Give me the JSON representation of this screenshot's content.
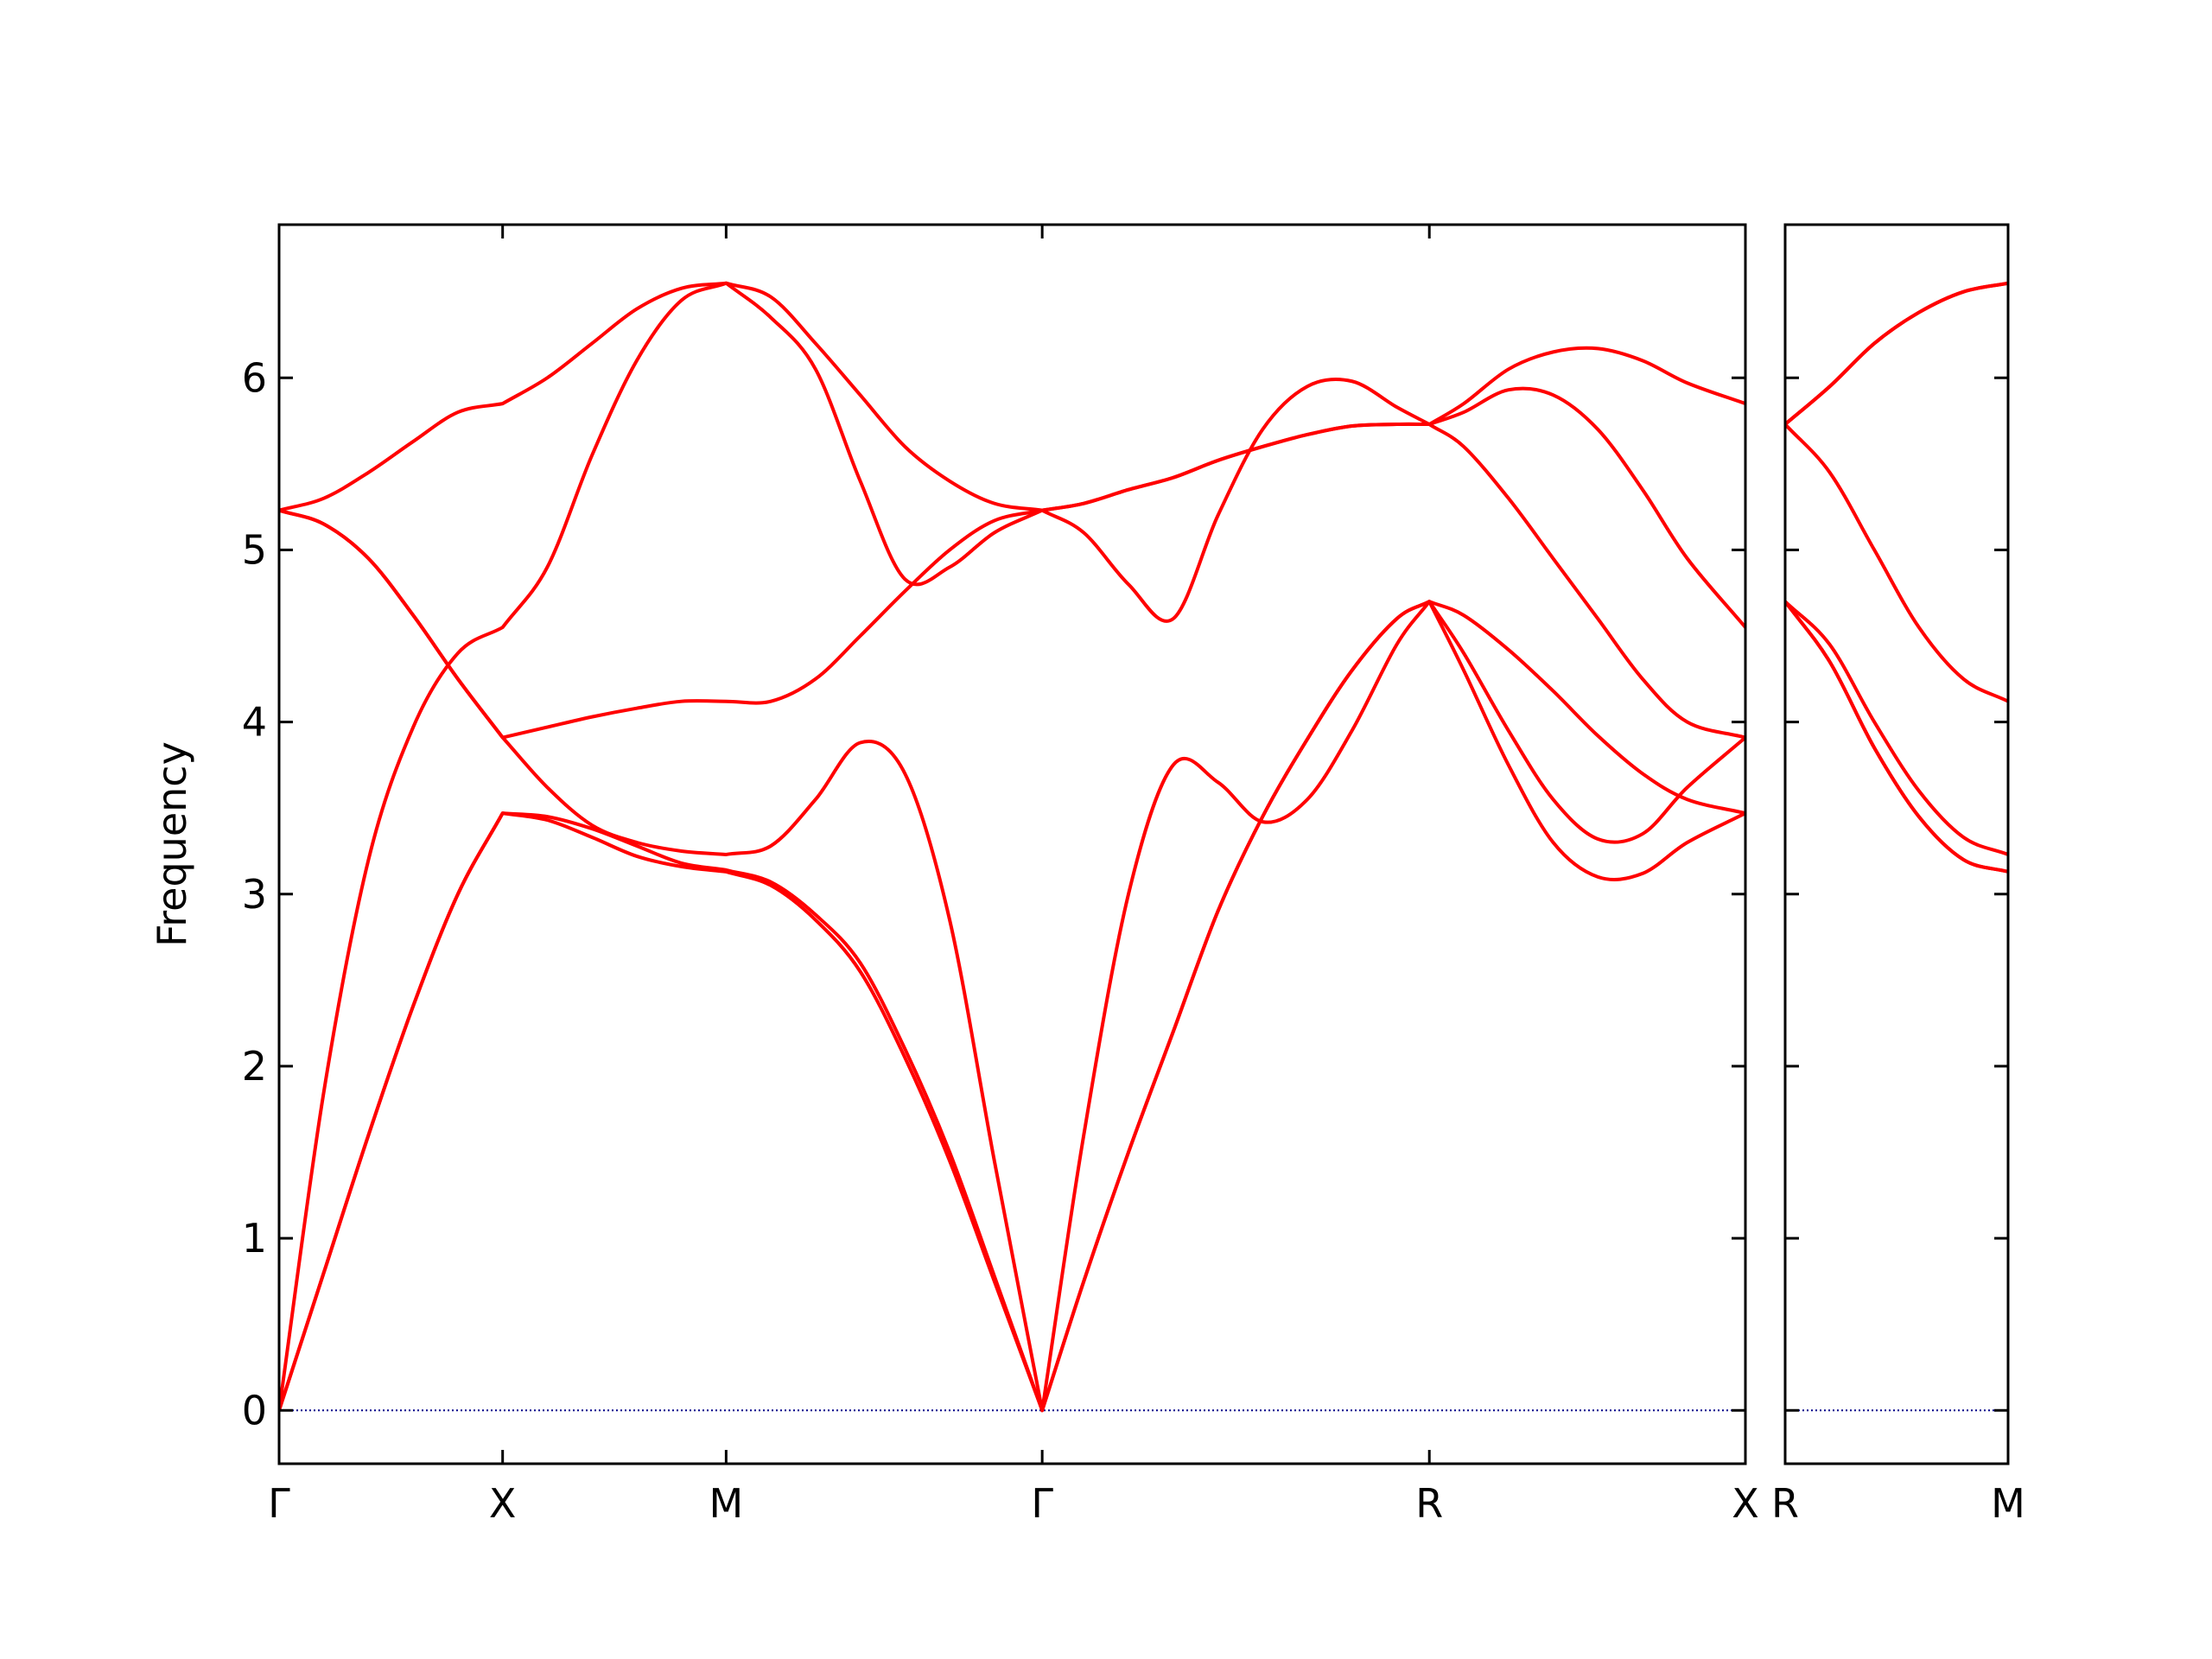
{
  "chart_data": [
    {
      "type": "line",
      "ylabel": "Frequency",
      "x": [
        0,
        0.1,
        0.2,
        0.3,
        0.4,
        0.5,
        0.6,
        0.7,
        0.8,
        0.9,
        1.0,
        1.1,
        1.2,
        1.3,
        1.4,
        1.5,
        1.6,
        1.707,
        1.8,
        1.9,
        2.0,
        2.1,
        2.2,
        2.3,
        2.4,
        2.5,
        2.573,
        2.65,
        2.75,
        2.85,
        2.95,
        3.05,
        3.15,
        3.28
      ],
      "xlim": [
        0,
        3.28
      ],
      "xticks": [
        {
          "value": 0,
          "label": "Γ"
        },
        {
          "value": 0.5,
          "label": "X"
        },
        {
          "value": 1.0,
          "label": "M"
        },
        {
          "value": 1.707,
          "label": "Γ"
        },
        {
          "value": 2.573,
          "label": "R"
        },
        {
          "value": 3.28,
          "label": "X"
        }
      ],
      "ylim": [
        -0.31,
        6.89
      ],
      "yticks": [
        0,
        1,
        2,
        3,
        4,
        5,
        6
      ],
      "ytick_labels": true,
      "hline": 0,
      "hline_color": "#00008b",
      "series": [
        {
          "color": "#ff0000",
          "values": [
            0,
            0.8,
            1.6,
            2.35,
            3.0,
            3.47,
            3.43,
            3.33,
            3.22,
            3.16,
            3.13,
            3.05,
            2.85,
            2.55,
            2.05,
            1.45,
            0.75,
            0,
            0.75,
            1.5,
            2.2,
            2.9,
            3.45,
            3.9,
            4.3,
            4.6,
            4.7,
            4.3,
            3.75,
            3.3,
            3.1,
            3.12,
            3.3,
            3.47
          ]
        },
        {
          "color": "#ff0000",
          "values": [
            0,
            0.8,
            1.6,
            2.35,
            3.0,
            3.47,
            3.45,
            3.38,
            3.28,
            3.18,
            3.14,
            3.07,
            2.88,
            2.6,
            2.1,
            1.5,
            0.78,
            0,
            0.75,
            1.5,
            2.2,
            2.9,
            3.45,
            3.9,
            4.3,
            4.6,
            4.7,
            4.62,
            4.42,
            4.18,
            3.92,
            3.7,
            3.55,
            3.47
          ]
        },
        {
          "color": "#ff0000",
          "values": [
            0,
            1.85,
            3.2,
            3.97,
            4.4,
            4.55,
            4.9,
            5.55,
            6.1,
            6.45,
            6.55,
            6.35,
            6.05,
            5.4,
            4.83,
            4.9,
            5.1,
            5.23,
            5.1,
            4.8,
            4.6,
            5.2,
            5.7,
            5.95,
            5.98,
            5.83,
            5.73,
            5.8,
            5.93,
            5.9,
            5.7,
            5.35,
            4.95,
            4.55
          ]
        },
        {
          "color": "#ff0000",
          "values": [
            5.23,
            5.15,
            4.95,
            4.62,
            4.25,
            3.91,
            3.62,
            3.4,
            3.3,
            3.25,
            3.23,
            3.28,
            3.55,
            3.88,
            3.7,
            2.85,
            1.45,
            0,
            1.6,
            3.0,
            3.75,
            3.65,
            3.42,
            3.55,
            3.95,
            4.45,
            4.7,
            4.4,
            3.95,
            3.55,
            3.32,
            3.35,
            3.62,
            3.91
          ]
        },
        {
          "color": "#ff0000",
          "values": [
            5.23,
            5.15,
            4.95,
            4.62,
            4.25,
            3.91,
            3.97,
            4.03,
            4.08,
            4.12,
            4.12,
            4.12,
            4.25,
            4.5,
            4.76,
            5.0,
            5.17,
            5.23,
            5.27,
            5.35,
            5.42,
            5.52,
            5.6,
            5.67,
            5.72,
            5.73,
            5.73,
            5.6,
            5.3,
            4.95,
            4.6,
            4.25,
            4.0,
            3.91
          ]
        },
        {
          "color": "#ff0000",
          "values": [
            5.23,
            5.3,
            5.45,
            5.63,
            5.8,
            5.85,
            6.0,
            6.2,
            6.4,
            6.52,
            6.55,
            6.47,
            6.2,
            5.9,
            5.6,
            5.4,
            5.27,
            5.23,
            5.27,
            5.35,
            5.42,
            5.52,
            5.6,
            5.67,
            5.72,
            5.73,
            5.73,
            5.85,
            6.05,
            6.15,
            6.17,
            6.1,
            5.97,
            5.85
          ]
        }
      ]
    },
    {
      "type": "line",
      "x": [
        0,
        0.1,
        0.2,
        0.3,
        0.4,
        0.5
      ],
      "xlim": [
        0,
        0.5
      ],
      "xticks": [
        {
          "value": 0,
          "label": "R"
        },
        {
          "value": 0.5,
          "label": "M"
        }
      ],
      "ylim": [
        -0.31,
        6.89
      ],
      "yticks": [
        0,
        1,
        2,
        3,
        4,
        5,
        6
      ],
      "ytick_labels": false,
      "hline": 0,
      "hline_color": "#00008b",
      "series": [
        {
          "color": "#ff0000",
          "values": [
            5.73,
            5.95,
            6.2,
            6.38,
            6.5,
            6.55
          ]
        },
        {
          "color": "#ff0000",
          "values": [
            5.73,
            5.95,
            6.2,
            6.38,
            6.5,
            6.55
          ]
        },
        {
          "color": "#ff0000",
          "values": [
            5.73,
            5.45,
            5.0,
            4.55,
            4.25,
            4.12
          ]
        },
        {
          "color": "#ff0000",
          "values": [
            4.7,
            4.45,
            4.0,
            3.6,
            3.33,
            3.23
          ]
        },
        {
          "color": "#ff0000",
          "values": [
            4.7,
            4.35,
            3.85,
            3.45,
            3.2,
            3.13
          ]
        },
        {
          "color": "#ff0000",
          "values": [
            4.7,
            4.35,
            3.85,
            3.45,
            3.2,
            3.13
          ]
        }
      ]
    }
  ]
}
